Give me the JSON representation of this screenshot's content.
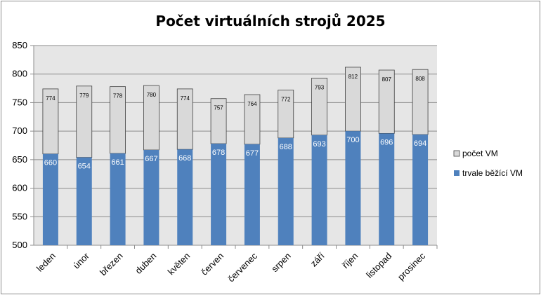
{
  "chart_data": {
    "type": "bar",
    "title": "Počet virtuálních strojů 2025",
    "categories": [
      "leden",
      "únor",
      "březen",
      "duben",
      "květen",
      "červen",
      "červenec",
      "srpen",
      "září",
      "říjen",
      "listopad",
      "prosinec"
    ],
    "series": [
      {
        "name": "trvale běžící VM",
        "values": [
          660,
          654,
          661,
          667,
          668,
          678,
          677,
          688,
          693,
          700,
          696,
          694
        ],
        "color": "#4f81bd"
      },
      {
        "name": "počet VM",
        "values": [
          774,
          779,
          778,
          780,
          774,
          757,
          764,
          772,
          793,
          812,
          807,
          808
        ],
        "color": "#d9d9d9"
      }
    ],
    "ylim": [
      500,
      850
    ],
    "yticks": [
      500,
      550,
      600,
      650,
      700,
      750,
      800,
      850
    ],
    "grid": true,
    "legend": "right",
    "plot_background": "#e6e6e6"
  }
}
